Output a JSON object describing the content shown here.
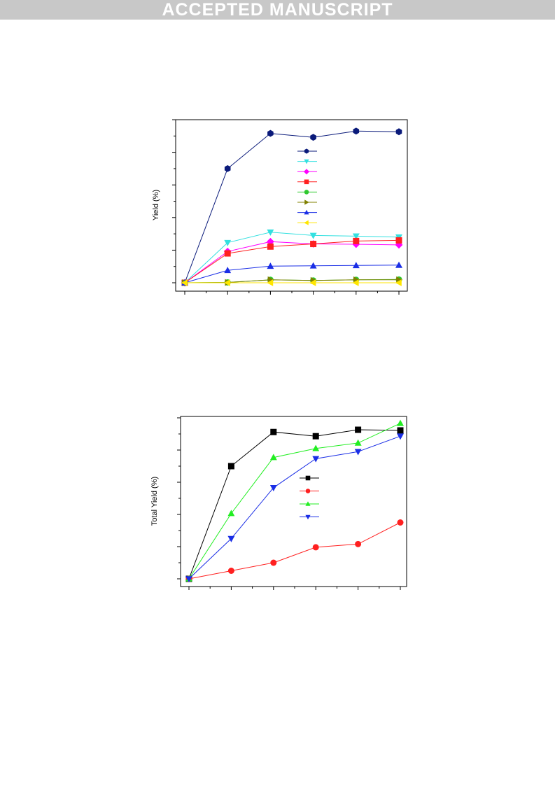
{
  "banner": {
    "text": "ACCEPTED MANUSCRIPT"
  },
  "colors": {
    "banner_bg": "#c8c8c8",
    "banner_text": "#ffffff"
  },
  "chart_data": [
    {
      "type": "line",
      "title": "",
      "xlabel": "",
      "ylabel": "Yield (%)",
      "x": [
        0,
        1,
        2,
        3,
        4,
        5
      ],
      "xlim": [
        0,
        5
      ],
      "ylim": [
        0,
        50
      ],
      "grid": false,
      "legend": "upper-center",
      "series": [
        {
          "color": "#0a1a7a",
          "marker": "hexagon",
          "values": [
            0,
            35,
            45.8,
            44.6,
            46.5,
            46.3
          ]
        },
        {
          "color": "#33e0e0",
          "marker": "triangle-down",
          "values": [
            0,
            12.3,
            15.5,
            14.5,
            14.3,
            14.0
          ]
        },
        {
          "color": "#ff00ff",
          "marker": "diamond",
          "values": [
            0,
            9.6,
            12.6,
            11.9,
            11.8,
            11.6
          ]
        },
        {
          "color": "#ff2020",
          "marker": "square",
          "values": [
            0,
            9.0,
            11.1,
            11.9,
            12.8,
            13.0
          ]
        },
        {
          "color": "#2ec82e",
          "marker": "circle",
          "values": [
            0,
            0.1,
            0.9,
            0.7,
            0.9,
            1.0
          ]
        },
        {
          "color": "#808000",
          "marker": "triangle-right",
          "values": [
            0,
            0.1,
            0.9,
            0.7,
            0.9,
            0.9
          ]
        },
        {
          "color": "#1a2ee6",
          "marker": "triangle-up",
          "values": [
            0,
            3.8,
            5.1,
            5.2,
            5.3,
            5.4
          ]
        },
        {
          "color": "#ffe600",
          "marker": "triangle-left",
          "values": [
            0,
            0,
            0,
            0,
            0,
            0
          ]
        }
      ]
    },
    {
      "type": "line",
      "title": "",
      "xlabel": "",
      "ylabel": "Total Yield (%)",
      "x": [
        0,
        1,
        2,
        3,
        4,
        5
      ],
      "xlim": [
        0,
        5
      ],
      "ylim": [
        0,
        50
      ],
      "grid": false,
      "legend": "center",
      "series": [
        {
          "color": "#000000",
          "marker": "square",
          "values": [
            0,
            35,
            45.6,
            44.3,
            46.3,
            46.1
          ]
        },
        {
          "color": "#ff2020",
          "marker": "circle",
          "values": [
            0,
            2.5,
            5.0,
            9.8,
            10.8,
            17.5
          ]
        },
        {
          "color": "#22ee22",
          "marker": "triangle-up",
          "values": [
            0,
            20.3,
            37.7,
            40.5,
            42.2,
            48.3
          ]
        },
        {
          "color": "#1a2ee6",
          "marker": "triangle-down",
          "values": [
            0,
            12.5,
            28.3,
            37.3,
            39.5,
            44.3
          ]
        }
      ]
    }
  ]
}
